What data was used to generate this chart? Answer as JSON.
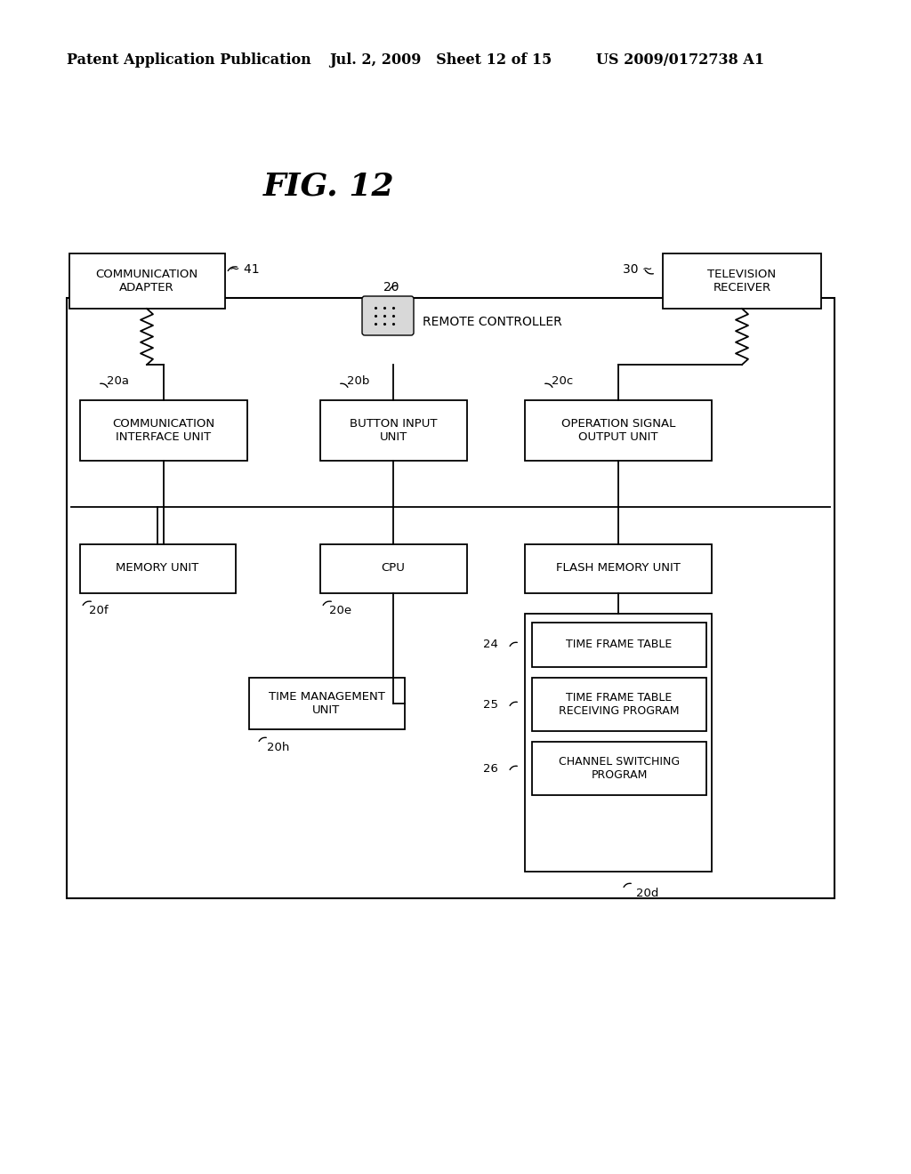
{
  "bg_color": "#ffffff",
  "fig_title": "FIG. 12",
  "header_left": "Patent Application Publication",
  "header_mid": "Jul. 2, 2009   Sheet 12 of 15",
  "header_right": "US 2009/0172738 A1",
  "figsize": [
    10.24,
    13.2
  ],
  "dpi": 100
}
